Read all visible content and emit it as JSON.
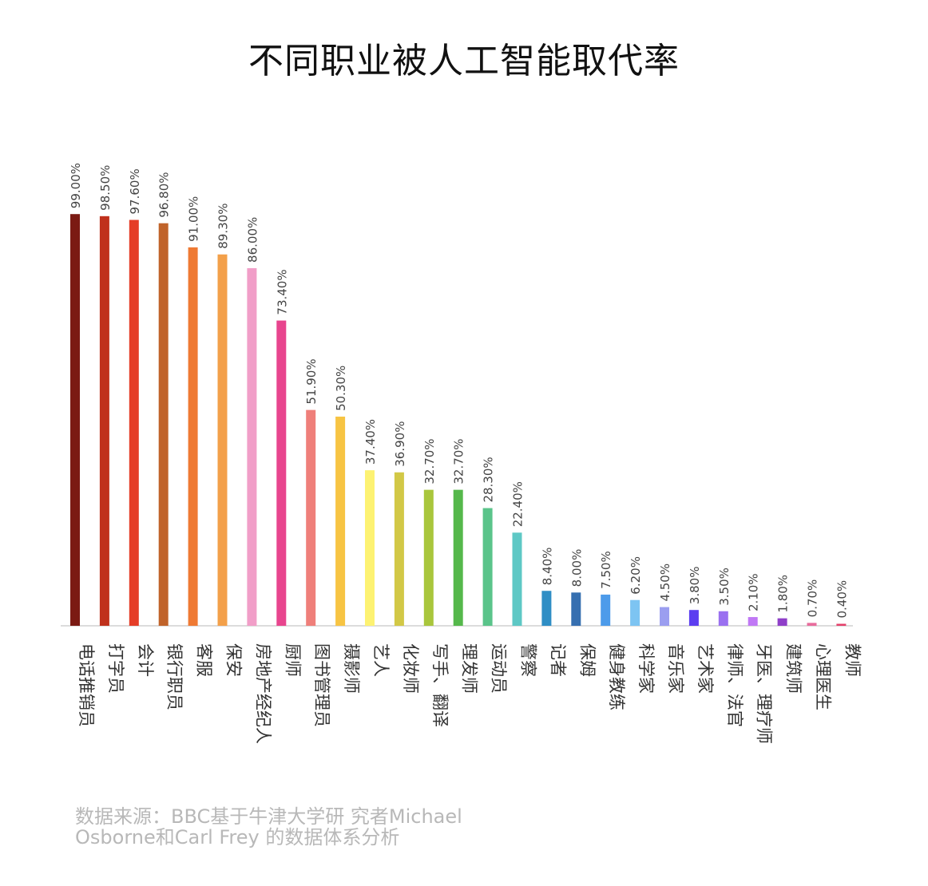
{
  "chart_data": {
    "type": "bar",
    "title": "不同职业被人工智能取代率",
    "categories": [
      "电话推销员",
      "打字员",
      "会计",
      "银行职员",
      "客服",
      "保安",
      "房地产经纪人",
      "厨师",
      "图书管理员",
      "摄影师",
      "艺人",
      "化妆师",
      "写手、翻译",
      "理发师",
      "运动员",
      "警察",
      "记者",
      "保姆",
      "健身教练",
      "科学家",
      "音乐家",
      "艺术家",
      "律师、法官",
      "牙医、理疗师",
      "建筑师",
      "心理医生",
      "教师"
    ],
    "values": [
      99.0,
      98.5,
      97.6,
      96.8,
      91.0,
      89.3,
      86.0,
      73.4,
      51.9,
      50.3,
      37.4,
      36.9,
      32.7,
      32.7,
      28.3,
      22.4,
      8.4,
      8.0,
      7.5,
      6.2,
      4.5,
      3.8,
      3.5,
      2.1,
      1.8,
      0.7,
      0.4
    ],
    "value_labels": [
      "99.00%",
      "98.50%",
      "97.60%",
      "96.80%",
      "91.00%",
      "89.30%",
      "86.00%",
      "73.40%",
      "51.90%",
      "50.30%",
      "37.40%",
      "36.90%",
      "32.70%",
      "32.70%",
      "28.30%",
      "22.40%",
      "8.40%",
      "8.00%",
      "7.50%",
      "6.20%",
      "4.50%",
      "3.80%",
      "3.50%",
      "2.10%",
      "1.80%",
      "0.70%",
      "0.40%"
    ],
    "colors": [
      "#7b1a13",
      "#c0311c",
      "#e53d27",
      "#c0632a",
      "#ef7a34",
      "#f3a04a",
      "#f19ec8",
      "#e8458e",
      "#ef7f7a",
      "#f7c443",
      "#fdf272",
      "#d2c846",
      "#a9c63c",
      "#55b84b",
      "#5ac48a",
      "#5ec8c5",
      "#2f8ec5",
      "#366fb0",
      "#4d9bea",
      "#7dc4f2",
      "#9b9ef0",
      "#5c3df0",
      "#9a70f0",
      "#c078f5",
      "#8f3fc9",
      "#e86c9c",
      "#e43f6a"
    ],
    "ylim": [
      0,
      100
    ],
    "grid": false,
    "legend": "none"
  },
  "source": {
    "line1": "数据来源：BBC基于牛津大学研   究者Michael",
    "line2": "Osborne和Carl Frey 的数据体系分析"
  }
}
